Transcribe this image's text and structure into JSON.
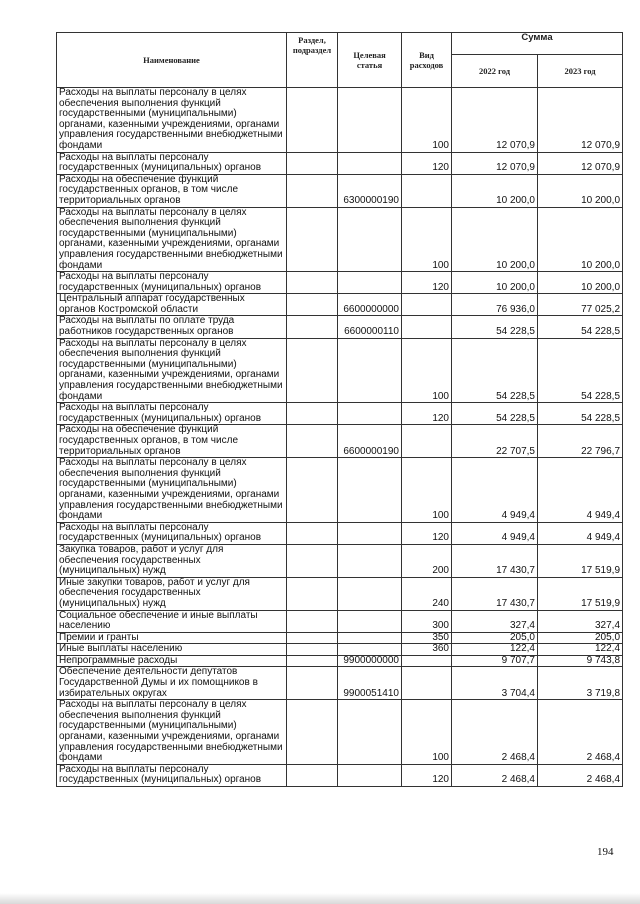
{
  "header": {
    "name": "Наименование",
    "razdel": "Раздел, подраздел",
    "celevaya": "Целевая статья",
    "vid": "Вид расходов",
    "summa": "Сумма",
    "y2022": "2022 год",
    "y2023": "2023 год"
  },
  "rows": [
    {
      "name": "Расходы на выплаты персоналу в целях\nобеспечения выполнения функций\nгосударственными (муниципальными)\nорганами, казенными учреждениями, органами\nуправления государственными внебюджетными\nфондами",
      "razdel": "",
      "celevaya": "",
      "vid": "100",
      "y2022": "12 070,9",
      "y2023": "12 070,9"
    },
    {
      "name": "Расходы на выплаты персоналу\nгосударственных (муниципальных) органов",
      "razdel": "",
      "celevaya": "",
      "vid": "120",
      "y2022": "12 070,9",
      "y2023": "12 070,9"
    },
    {
      "name": "Расходы на обеспечение функций\nгосударственных органов, в том числе\nтерриториальных органов",
      "razdel": "",
      "celevaya": "6300000190",
      "vid": "",
      "y2022": "10 200,0",
      "y2023": "10 200,0"
    },
    {
      "name": "Расходы на выплаты персоналу в целях\nобеспечения выполнения функций\nгосударственными (муниципальными)\nорганами, казенными учреждениями, органами\nуправления государственными внебюджетными\nфондами",
      "razdel": "",
      "celevaya": "",
      "vid": "100",
      "y2022": "10 200,0",
      "y2023": "10 200,0"
    },
    {
      "name": "Расходы на выплаты персоналу\nгосударственных (муниципальных) органов",
      "razdel": "",
      "celevaya": "",
      "vid": "120",
      "y2022": "10 200,0",
      "y2023": "10 200,0"
    },
    {
      "name": "Центральный аппарат государственных\nорганов Костромской области",
      "razdel": "",
      "celevaya": "6600000000",
      "vid": "",
      "y2022": "76 936,0",
      "y2023": "77 025,2"
    },
    {
      "name": "Расходы на выплаты по оплате труда\nработников государственных органов",
      "razdel": "",
      "celevaya": "6600000110",
      "vid": "",
      "y2022": "54 228,5",
      "y2023": "54 228,5"
    },
    {
      "name": "Расходы на выплаты персоналу в целях\nобеспечения выполнения функций\nгосударственными (муниципальными)\nорганами, казенными учреждениями, органами\nуправления государственными внебюджетными\nфондами",
      "razdel": "",
      "celevaya": "",
      "vid": "100",
      "y2022": "54 228,5",
      "y2023": "54 228,5"
    },
    {
      "name": "Расходы на выплаты персоналу\nгосударственных (муниципальных) органов",
      "razdel": "",
      "celevaya": "",
      "vid": "120",
      "y2022": "54 228,5",
      "y2023": "54 228,5"
    },
    {
      "name": "Расходы на обеспечение функций\nгосударственных органов, в том числе\nтерриториальных органов",
      "razdel": "",
      "celevaya": "6600000190",
      "vid": "",
      "y2022": "22 707,5",
      "y2023": "22 796,7"
    },
    {
      "name": "Расходы на выплаты персоналу в целях\nобеспечения выполнения функций\nгосударственными (муниципальными)\nорганами, казенными учреждениями, органами\nуправления государственными внебюджетными\nфондами",
      "razdel": "",
      "celevaya": "",
      "vid": "100",
      "y2022": "4 949,4",
      "y2023": "4 949,4"
    },
    {
      "name": "Расходы на выплаты персоналу\nгосударственных (муниципальных) органов",
      "razdel": "",
      "celevaya": "",
      "vid": "120",
      "y2022": "4 949,4",
      "y2023": "4 949,4"
    },
    {
      "name": "Закупка товаров, работ и услуг для\nобеспечения государственных\n(муниципальных) нужд",
      "razdel": "",
      "celevaya": "",
      "vid": "200",
      "y2022": "17 430,7",
      "y2023": "17 519,9"
    },
    {
      "name": "Иные закупки товаров, работ и услуг для\nобеспечения государственных\n(муниципальных) нужд",
      "razdel": "",
      "celevaya": "",
      "vid": "240",
      "y2022": "17 430,7",
      "y2023": "17 519,9"
    },
    {
      "name": "Социальное обеспечение и иные выплаты\nнаселению",
      "razdel": "",
      "celevaya": "",
      "vid": "300",
      "y2022": "327,4",
      "y2023": "327,4"
    },
    {
      "name": "Премии и гранты",
      "razdel": "",
      "celevaya": "",
      "vid": "350",
      "y2022": "205,0",
      "y2023": "205,0"
    },
    {
      "name": "Иные выплаты населению",
      "razdel": "",
      "celevaya": "",
      "vid": "360",
      "y2022": "122,4",
      "y2023": "122,4"
    },
    {
      "name": "Непрограммные расходы",
      "razdel": "",
      "celevaya": "9900000000",
      "vid": "",
      "y2022": "9 707,7",
      "y2023": "9 743,8"
    },
    {
      "name": "Обеспечение деятельности депутатов\nГосударственной Думы и их помощников в\nизбирательных округах",
      "razdel": "",
      "celevaya": "9900051410",
      "vid": "",
      "y2022": "3 704,4",
      "y2023": "3 719,8"
    },
    {
      "name": "Расходы на выплаты персоналу в целях\nобеспечения выполнения функций\nгосударственными (муниципальными)\nорганами, казенными учреждениями, органами\nуправления государственными внебюджетными\nфондами",
      "razdel": "",
      "celevaya": "",
      "vid": "100",
      "y2022": "2 468,4",
      "y2023": "2 468,4"
    },
    {
      "name": "Расходы на выплаты персоналу\nгосударственных (муниципальных) органов",
      "razdel": "",
      "celevaya": "",
      "vid": "120",
      "y2022": "2 468,4",
      "y2023": "2 468,4"
    }
  ],
  "page_number": "194"
}
